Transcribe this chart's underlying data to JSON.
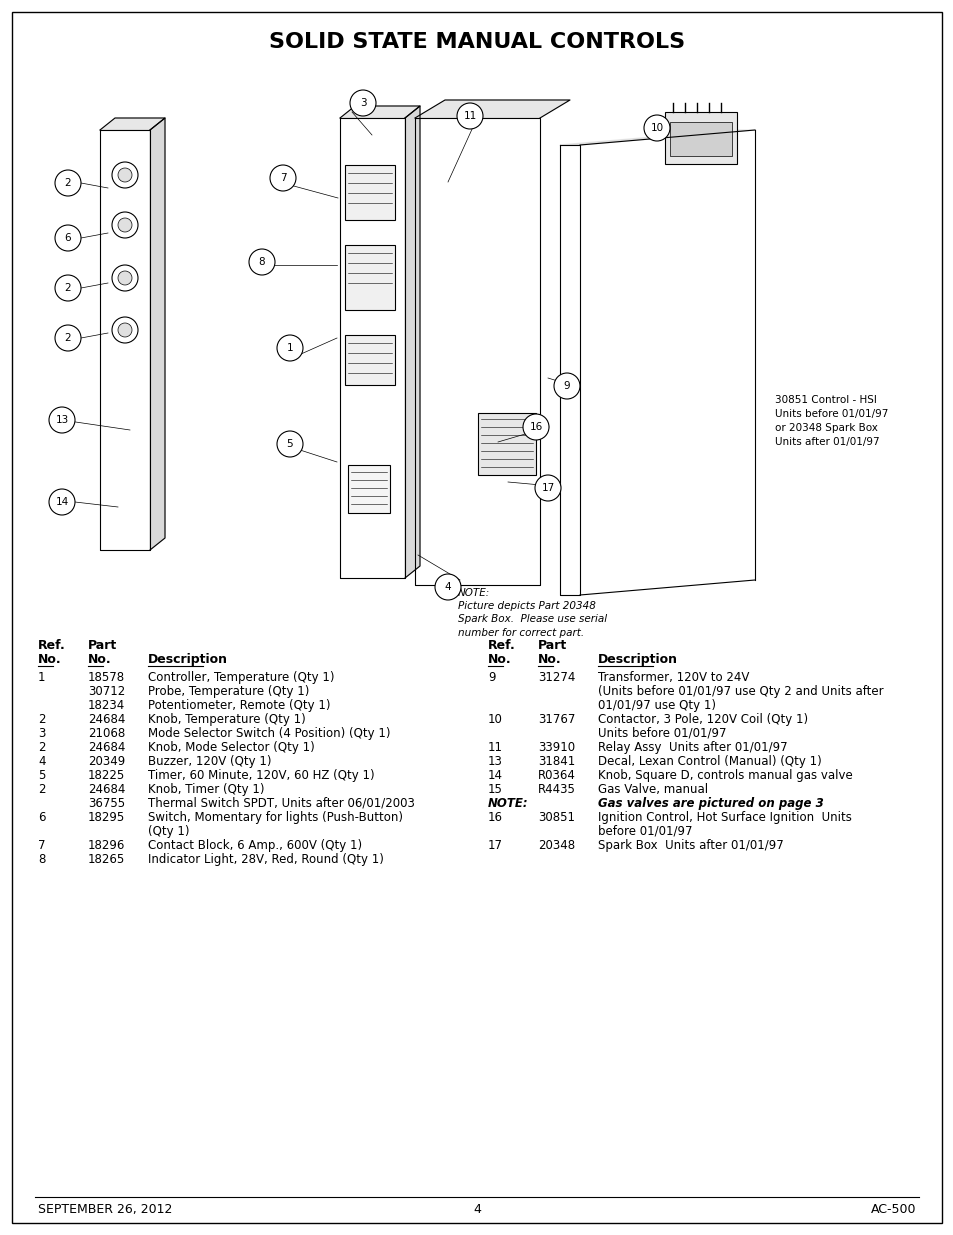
{
  "title": "SOLID STATE MANUAL CONTROLS",
  "background_color": "#ffffff",
  "footer_left": "SEPTEMBER 26, 2012",
  "footer_center": "4",
  "footer_right": "AC-500",
  "parts_left": [
    [
      "1",
      "18578",
      "Controller, Temperature (Qty 1)"
    ],
    [
      "",
      "30712",
      "Probe, Temperature (Qty 1)"
    ],
    [
      "",
      "18234",
      "Potentiometer, Remote (Qty 1)"
    ],
    [
      "2",
      "24684",
      "Knob, Temperature (Qty 1)"
    ],
    [
      "3",
      "21068",
      "Mode Selector Switch (4 Position) (Qty 1)"
    ],
    [
      "2",
      "24684",
      "Knob, Mode Selector (Qty 1)"
    ],
    [
      "4",
      "20349",
      "Buzzer, 120V (Qty 1)"
    ],
    [
      "5",
      "18225",
      "Timer, 60 Minute, 120V, 60 HZ (Qty 1)"
    ],
    [
      "2",
      "24684",
      "Knob, Timer (Qty 1)"
    ],
    [
      "",
      "36755",
      "Thermal Switch SPDT, Units after 06/01/2003"
    ],
    [
      "6",
      "18295",
      "Switch, Momentary for lights (Push-Button)"
    ],
    [
      "",
      "",
      "(Qty 1)"
    ],
    [
      "7",
      "18296",
      "Contact Block, 6 Amp., 600V (Qty 1)"
    ],
    [
      "8",
      "18265",
      "Indicator Light, 28V, Red, Round (Qty 1)"
    ]
  ],
  "parts_right": [
    [
      "9",
      "31274",
      "Transformer, 120V to 24V"
    ],
    [
      "",
      "",
      "(Units before 01/01/97 use Qty 2 and Units after"
    ],
    [
      "",
      "",
      "01/01/97 use Qty 1)"
    ],
    [
      "10",
      "31767",
      "Contactor, 3 Pole, 120V Coil (Qty 1)"
    ],
    [
      "",
      "",
      "Units before 01/01/97"
    ],
    [
      "11",
      "33910",
      "Relay Assy  Units after 01/01/97"
    ],
    [
      "13",
      "31841",
      "Decal, Lexan Control (Manual) (Qty 1)"
    ],
    [
      "14",
      "R0364",
      "Knob, Square D, controls manual gas valve"
    ],
    [
      "15",
      "R4435",
      "Gas Valve, manual"
    ],
    [
      "NOTE:",
      "",
      "Gas valves are pictured on page 3"
    ],
    [
      "16",
      "30851",
      "Ignition Control, Hot Surface Ignition  Units"
    ],
    [
      "",
      "",
      "before 01/01/97"
    ],
    [
      "17",
      "20348",
      "Spark Box  Units after 01/01/97"
    ]
  ],
  "diagram_note_line1": "NOTE:",
  "diagram_note_line2": "Picture depicts Part 20348",
  "diagram_note_line3": "Spark Box.  Please use serial",
  "diagram_note_line4": "number for correct part.",
  "diagram_callout_line1": "30851 Control - HSI",
  "diagram_callout_line2": "Units before 01/01/97",
  "diagram_callout_line3": "or 20348 Spark Box",
  "diagram_callout_line4": "Units after 01/01/97",
  "text_color": "#000000",
  "font_size_title": 16,
  "font_size_body": 8.5,
  "font_size_footer": 9
}
